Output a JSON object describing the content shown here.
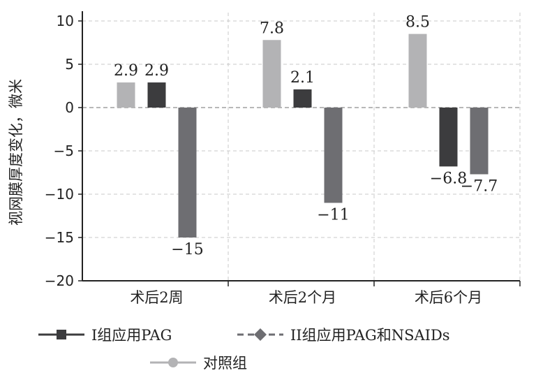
{
  "chart_data": {
    "type": "bar",
    "ylabel": "视网膜厚度变化，微米",
    "ylim": [
      -20,
      10
    ],
    "yticks": [
      10,
      5,
      0,
      -5,
      -10,
      -15,
      -20
    ],
    "grid": true,
    "legend_position": "bottom",
    "categories": [
      "术后2周",
      "术后2个月",
      "术后6个月"
    ],
    "series": [
      {
        "name": "对照组",
        "values": [
          2.9,
          7.8,
          8.5
        ],
        "labels": [
          "2.9",
          "7.8",
          "8.5"
        ],
        "color": "#b3b3b5"
      },
      {
        "name": "I组应用PAG",
        "values": [
          2.9,
          2.1,
          -6.8
        ],
        "labels": [
          "2.9",
          "2.1",
          "-6.8"
        ],
        "color": "#3c3c3e"
      },
      {
        "name": "II组应用PAG和NSAIDs",
        "values": [
          -15,
          -11,
          -7.7
        ],
        "labels": [
          "-15",
          "-11",
          "-7.7"
        ],
        "color": "#6e6e72"
      }
    ],
    "legend": [
      {
        "name": "I组应用PAG",
        "line_style": "solid",
        "marker": "square",
        "color": "#3c3c3e"
      },
      {
        "name": "II组应用PAG和NSAIDs",
        "line_style": "dashed",
        "marker": "diamond",
        "color": "#6e6e72"
      },
      {
        "name": "对照组",
        "line_style": "solid",
        "marker": "circle",
        "color": "#b3b3b5"
      }
    ]
  }
}
